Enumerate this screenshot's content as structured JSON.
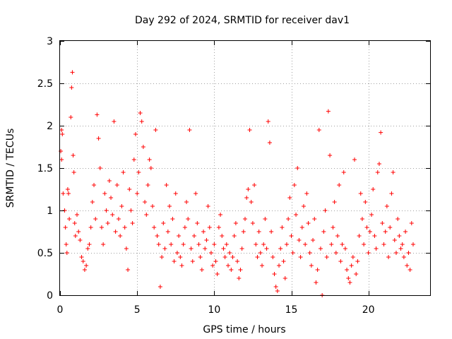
{
  "chart_data": {
    "type": "scatter",
    "title": "Day 292 of 2024, SRMTID for receiver dav1",
    "xlabel": "GPS time / hours",
    "ylabel": "SRMTID / TECUs",
    "xlim": [
      0,
      24
    ],
    "ylim": [
      0,
      3
    ],
    "x_ticks": [
      0,
      5,
      10,
      15,
      20
    ],
    "x_tick_labels": [
      "0",
      "5",
      "10",
      "15",
      "20"
    ],
    "y_ticks": [
      0,
      0.5,
      1,
      1.5,
      2,
      2.5,
      3
    ],
    "y_tick_labels": [
      "0",
      "0.5",
      "1",
      "1.5",
      "2",
      "2.5",
      "3"
    ],
    "grid": true,
    "marker": "+",
    "color": "#ff0000",
    "series": [
      {
        "name": "dav1",
        "points": [
          [
            0.05,
            1.7
          ],
          [
            0.1,
            1.6
          ],
          [
            0.1,
            1.95
          ],
          [
            0.15,
            1.9
          ],
          [
            0.2,
            1.2
          ],
          [
            0.3,
            1.0
          ],
          [
            0.35,
            0.8
          ],
          [
            0.4,
            0.6
          ],
          [
            0.45,
            0.5
          ],
          [
            0.5,
            1.25
          ],
          [
            0.55,
            1.2
          ],
          [
            0.6,
            0.9
          ],
          [
            0.7,
            2.1
          ],
          [
            0.75,
            2.45
          ],
          [
            0.8,
            2.63
          ],
          [
            0.85,
            1.65
          ],
          [
            0.9,
            1.45
          ],
          [
            0.95,
            0.85
          ],
          [
            1.0,
            0.7
          ],
          [
            1.1,
            0.95
          ],
          [
            1.2,
            0.75
          ],
          [
            1.3,
            0.65
          ],
          [
            1.4,
            0.45
          ],
          [
            1.5,
            0.4
          ],
          [
            1.6,
            0.3
          ],
          [
            1.7,
            0.35
          ],
          [
            1.8,
            0.55
          ],
          [
            1.9,
            0.6
          ],
          [
            2.0,
            0.8
          ],
          [
            2.1,
            1.1
          ],
          [
            2.2,
            1.3
          ],
          [
            2.3,
            0.9
          ],
          [
            2.4,
            2.13
          ],
          [
            2.5,
            1.85
          ],
          [
            2.6,
            1.5
          ],
          [
            2.7,
            0.8
          ],
          [
            2.8,
            0.6
          ],
          [
            2.9,
            1.2
          ],
          [
            3.0,
            1.0
          ],
          [
            3.1,
            0.85
          ],
          [
            3.2,
            1.35
          ],
          [
            3.3,
            1.15
          ],
          [
            3.4,
            0.95
          ],
          [
            3.5,
            2.05
          ],
          [
            3.6,
            0.75
          ],
          [
            3.7,
            1.3
          ],
          [
            3.8,
            0.9
          ],
          [
            3.9,
            0.7
          ],
          [
            4.0,
            1.05
          ],
          [
            4.1,
            1.45
          ],
          [
            4.2,
            0.8
          ],
          [
            4.3,
            0.55
          ],
          [
            4.4,
            0.3
          ],
          [
            4.5,
            1.25
          ],
          [
            4.6,
            1.0
          ],
          [
            4.7,
            0.85
          ],
          [
            4.8,
            1.6
          ],
          [
            4.9,
            1.9
          ],
          [
            5.0,
            1.2
          ],
          [
            5.1,
            1.45
          ],
          [
            5.2,
            2.15
          ],
          [
            5.3,
            2.05
          ],
          [
            5.4,
            1.75
          ],
          [
            5.5,
            1.1
          ],
          [
            5.6,
            0.95
          ],
          [
            5.7,
            1.3
          ],
          [
            5.8,
            1.6
          ],
          [
            5.9,
            1.5
          ],
          [
            6.0,
            1.05
          ],
          [
            6.1,
            0.8
          ],
          [
            6.2,
            1.95
          ],
          [
            6.3,
            0.7
          ],
          [
            6.4,
            0.6
          ],
          [
            6.5,
            0.1
          ],
          [
            6.6,
            0.45
          ],
          [
            6.7,
            0.85
          ],
          [
            6.8,
            0.55
          ],
          [
            6.9,
            1.3
          ],
          [
            7.0,
            0.75
          ],
          [
            7.1,
            1.05
          ],
          [
            7.2,
            0.6
          ],
          [
            7.3,
            0.9
          ],
          [
            7.4,
            0.4
          ],
          [
            7.5,
            1.2
          ],
          [
            7.6,
            0.5
          ],
          [
            7.7,
            0.7
          ],
          [
            7.8,
            0.45
          ],
          [
            7.9,
            0.35
          ],
          [
            8.0,
            0.6
          ],
          [
            8.1,
            0.8
          ],
          [
            8.2,
            1.1
          ],
          [
            8.3,
            0.9
          ],
          [
            8.4,
            1.95
          ],
          [
            8.5,
            0.55
          ],
          [
            8.6,
            0.4
          ],
          [
            8.7,
            0.7
          ],
          [
            8.8,
            1.2
          ],
          [
            8.9,
            0.85
          ],
          [
            9.0,
            0.6
          ],
          [
            9.1,
            0.45
          ],
          [
            9.2,
            0.3
          ],
          [
            9.3,
            0.75
          ],
          [
            9.4,
            0.55
          ],
          [
            9.5,
            0.65
          ],
          [
            9.6,
            1.05
          ],
          [
            9.7,
            0.8
          ],
          [
            9.8,
            0.5
          ],
          [
            9.9,
            0.35
          ],
          [
            10.0,
            0.6
          ],
          [
            10.1,
            0.4
          ],
          [
            10.2,
            0.25
          ],
          [
            10.3,
            0.8
          ],
          [
            10.4,
            0.95
          ],
          [
            10.5,
            0.7
          ],
          [
            10.6,
            0.55
          ],
          [
            10.7,
            0.45
          ],
          [
            10.8,
            0.6
          ],
          [
            10.9,
            0.35
          ],
          [
            11.0,
            0.5
          ],
          [
            11.1,
            0.3
          ],
          [
            11.2,
            0.45
          ],
          [
            11.3,
            0.7
          ],
          [
            11.4,
            0.85
          ],
          [
            11.5,
            0.4
          ],
          [
            11.6,
            0.2
          ],
          [
            11.7,
            0.3
          ],
          [
            11.8,
            0.55
          ],
          [
            11.9,
            0.75
          ],
          [
            12.0,
            0.9
          ],
          [
            12.1,
            1.15
          ],
          [
            12.2,
            1.25
          ],
          [
            12.3,
            1.95
          ],
          [
            12.4,
            1.1
          ],
          [
            12.5,
            0.85
          ],
          [
            12.6,
            1.3
          ],
          [
            12.7,
            0.6
          ],
          [
            12.8,
            0.45
          ],
          [
            12.9,
            0.75
          ],
          [
            13.0,
            0.5
          ],
          [
            13.1,
            0.35
          ],
          [
            13.2,
            0.6
          ],
          [
            13.3,
            0.9
          ],
          [
            13.4,
            0.55
          ],
          [
            13.5,
            2.05
          ],
          [
            13.6,
            1.8
          ],
          [
            13.7,
            0.75
          ],
          [
            13.8,
            0.45
          ],
          [
            13.9,
            0.25
          ],
          [
            14.0,
            0.1
          ],
          [
            14.1,
            0.05
          ],
          [
            14.2,
            0.35
          ],
          [
            14.3,
            0.55
          ],
          [
            14.4,
            0.8
          ],
          [
            14.5,
            0.4
          ],
          [
            14.6,
            0.2
          ],
          [
            14.7,
            0.6
          ],
          [
            14.8,
            0.9
          ],
          [
            14.9,
            1.15
          ],
          [
            15.0,
            0.7
          ],
          [
            15.1,
            0.5
          ],
          [
            15.2,
            1.3
          ],
          [
            15.3,
            0.95
          ],
          [
            15.4,
            1.5
          ],
          [
            15.5,
            0.65
          ],
          [
            15.6,
            0.45
          ],
          [
            15.7,
            0.8
          ],
          [
            15.8,
            1.05
          ],
          [
            15.9,
            0.6
          ],
          [
            16.0,
            1.2
          ],
          [
            16.1,
            0.85
          ],
          [
            16.2,
            0.5
          ],
          [
            16.3,
            0.35
          ],
          [
            16.4,
            0.65
          ],
          [
            16.5,
            0.9
          ],
          [
            16.6,
            0.15
          ],
          [
            16.7,
            0.3
          ],
          [
            16.8,
            1.95
          ],
          [
            16.9,
            0.55
          ],
          [
            17.0,
            0.0
          ],
          [
            17.1,
            0.75
          ],
          [
            17.2,
            1.0
          ],
          [
            17.3,
            0.45
          ],
          [
            17.4,
            2.17
          ],
          [
            17.5,
            1.65
          ],
          [
            17.6,
            0.6
          ],
          [
            17.7,
            0.8
          ],
          [
            17.8,
            1.1
          ],
          [
            17.9,
            0.5
          ],
          [
            18.0,
            0.7
          ],
          [
            18.1,
            1.3
          ],
          [
            18.2,
            0.4
          ],
          [
            18.3,
            0.6
          ],
          [
            18.4,
            1.45
          ],
          [
            18.5,
            0.55
          ],
          [
            18.6,
            0.3
          ],
          [
            18.7,
            0.2
          ],
          [
            18.8,
            0.15
          ],
          [
            18.9,
            0.35
          ],
          [
            19.0,
            0.45
          ],
          [
            19.1,
            1.6
          ],
          [
            19.2,
            0.25
          ],
          [
            19.3,
            0.4
          ],
          [
            19.4,
            0.7
          ],
          [
            19.5,
            1.2
          ],
          [
            19.6,
            0.9
          ],
          [
            19.7,
            0.6
          ],
          [
            19.8,
            1.1
          ],
          [
            19.9,
            0.8
          ],
          [
            20.0,
            0.5
          ],
          [
            20.1,
            0.75
          ],
          [
            20.2,
            0.95
          ],
          [
            20.3,
            1.25
          ],
          [
            20.4,
            0.7
          ],
          [
            20.5,
            0.55
          ],
          [
            20.6,
            1.45
          ],
          [
            20.7,
            1.55
          ],
          [
            20.8,
            1.92
          ],
          [
            20.9,
            0.85
          ],
          [
            21.0,
            0.6
          ],
          [
            21.1,
            0.75
          ],
          [
            21.2,
            1.05
          ],
          [
            21.3,
            0.45
          ],
          [
            21.4,
            0.8
          ],
          [
            21.5,
            1.2
          ],
          [
            21.6,
            1.45
          ],
          [
            21.7,
            0.65
          ],
          [
            21.8,
            0.5
          ],
          [
            21.9,
            0.9
          ],
          [
            22.0,
            0.7
          ],
          [
            22.1,
            0.55
          ],
          [
            22.2,
            0.6
          ],
          [
            22.3,
            0.45
          ],
          [
            22.4,
            0.75
          ],
          [
            22.5,
            0.35
          ],
          [
            22.6,
            0.5
          ],
          [
            22.7,
            0.3
          ],
          [
            22.8,
            0.85
          ],
          [
            22.9,
            0.6
          ]
        ]
      }
    ]
  }
}
